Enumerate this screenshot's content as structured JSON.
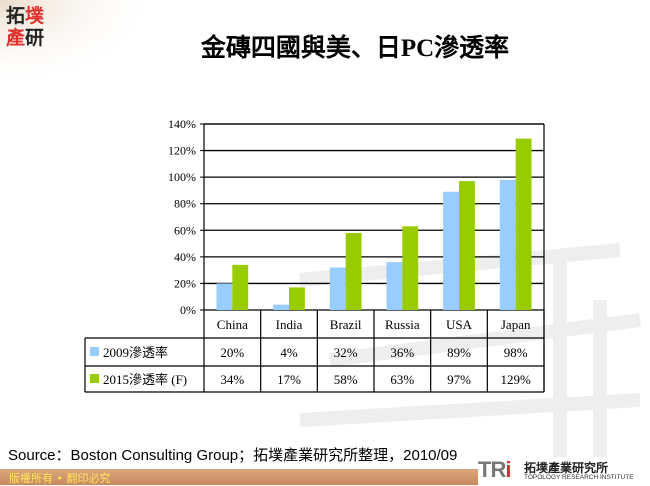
{
  "logo": {
    "chars": [
      "拓",
      "墣",
      "產",
      "研"
    ]
  },
  "title": "金磚四國與美、日PC滲透率",
  "chart_data": {
    "type": "bar",
    "categories": [
      "China",
      "India",
      "Brazil",
      "Russia",
      "USA",
      "Japan"
    ],
    "series": [
      {
        "name": "2009滲透率",
        "values": [
          20,
          4,
          32,
          36,
          89,
          98
        ],
        "labels": [
          "20%",
          "4%",
          "32%",
          "36%",
          "89%",
          "98%"
        ],
        "color": "#99ccff"
      },
      {
        "name": "2015滲透率 (F)",
        "values": [
          34,
          17,
          58,
          63,
          97,
          129
        ],
        "labels": [
          "34%",
          "17%",
          "58%",
          "63%",
          "97%",
          "129%"
        ],
        "color": "#99cc00"
      }
    ],
    "yticks": [
      "0%",
      "20%",
      "40%",
      "60%",
      "80%",
      "100%",
      "120%",
      "140%"
    ],
    "ylim": [
      0,
      140
    ],
    "grid": true,
    "legend": "data-table"
  },
  "source": "Source：Boston Consulting Group；拓墣產業研究所整理，2010/09",
  "footer": {
    "copyright": "版權所有 • 翻印必究",
    "org_logo": "TRi",
    "org_name": "拓墣產業研究所",
    "org_name_en": "TOPOLOGY RESEARCH INSTITUTE"
  }
}
